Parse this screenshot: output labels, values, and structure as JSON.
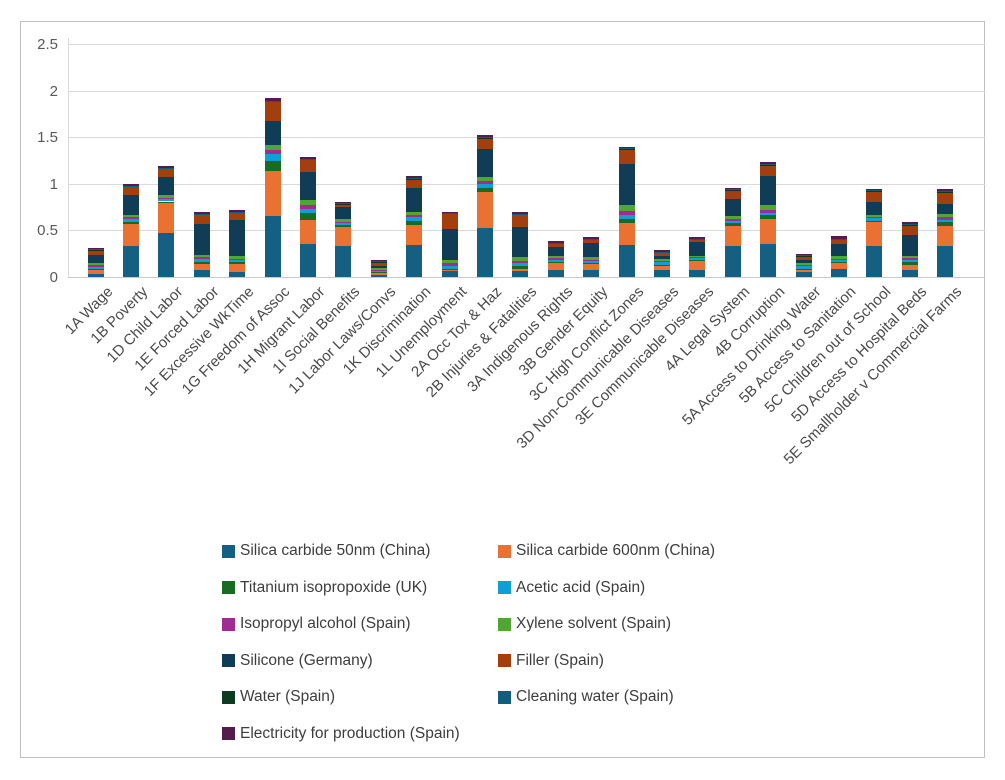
{
  "chart_data": {
    "type": "bar",
    "stacked": true,
    "title": "",
    "xlabel": "",
    "ylabel": "",
    "ylim": [
      0,
      2.5
    ],
    "y_ticks": [
      "0",
      "0.5",
      "1",
      "1.5",
      "2",
      "2.5"
    ],
    "y_tick_values": [
      0,
      0.5,
      1,
      1.5,
      2,
      2.5
    ],
    "grid": "horizontal",
    "legend_position": "bottom-two-columns",
    "categories": [
      "1A Wage",
      "1B Poverty",
      "1D Child Labor",
      "1E Forced Labor",
      "1F Excessive WkTime",
      "1G Freedom of Assoc",
      "1H Migrant Labor",
      "1I Social Benefits",
      "1J Labor Laws/Convs",
      "1K Discrimination",
      "1L Unemployment",
      "2A Occ Tox & Haz",
      "2B Injuries & Fatalities",
      "3A Indigenous Rights",
      "3B Gender Equity",
      "3C High Conflict Zones",
      "3D Non-Communicable Diseases",
      "3E Communicable Diseases",
      "4A Legal System",
      "4B Corruption",
      "5A Access to Drinking Water",
      "5B Access to Sanitation",
      "5C Children out of School",
      "5D Access to Hospital Beds",
      "5E Smallholder v Commercial Farms"
    ],
    "series": [
      {
        "name": "Silica carbide 50nm (China)",
        "color": "#156082",
        "values": [
          0.03,
          0.33,
          0.47,
          0.07,
          0.05,
          0.65,
          0.35,
          0.33,
          0.02,
          0.34,
          0.07,
          0.53,
          0.06,
          0.08,
          0.07,
          0.34,
          0.08,
          0.08,
          0.33,
          0.35,
          0.05,
          0.09,
          0.33,
          0.07,
          0.33
        ]
      },
      {
        "name": "Silica carbide 600nm (China)",
        "color": "#e97132",
        "values": [
          0.05,
          0.24,
          0.32,
          0.07,
          0.09,
          0.49,
          0.26,
          0.21,
          0.02,
          0.22,
          0.01,
          0.38,
          0.03,
          0.07,
          0.07,
          0.24,
          0.04,
          0.09,
          0.22,
          0.27,
          0.03,
          0.06,
          0.26,
          0.06,
          0.22
        ]
      },
      {
        "name": "Titanium isopropoxide (UK)",
        "color": "#196b24",
        "values": [
          0.01,
          0.02,
          0.02,
          0.02,
          0.02,
          0.1,
          0.08,
          0.02,
          0.01,
          0.04,
          0.01,
          0.05,
          0.03,
          0.01,
          0.01,
          0.04,
          0.01,
          0.01,
          0.03,
          0.04,
          0.01,
          0.01,
          0.01,
          0.03,
          0.035
        ]
      },
      {
        "name": "Acetic acid (Spain)",
        "color": "#0f9ed5",
        "values": [
          0.02,
          0.03,
          0.03,
          0.03,
          0.02,
          0.08,
          0.04,
          0.02,
          0.02,
          0.04,
          0.03,
          0.04,
          0.03,
          0.02,
          0.02,
          0.05,
          0.03,
          0.02,
          0.025,
          0.03,
          0.025,
          0.02,
          0.03,
          0.02,
          0.03
        ]
      },
      {
        "name": "Isopropyl alcohol (Spain)",
        "color": "#a02b93",
        "values": [
          0.02,
          0.02,
          0.01,
          0.02,
          0.01,
          0.04,
          0.04,
          0.01,
          0.01,
          0.02,
          0.03,
          0.03,
          0.02,
          0.02,
          0.01,
          0.04,
          0.01,
          0.01,
          0.02,
          0.03,
          0.015,
          0.01,
          0.01,
          0.025,
          0.03
        ]
      },
      {
        "name": "Xylene solvent (Spain)",
        "color": "#4ea72e",
        "values": [
          0.02,
          0.03,
          0.03,
          0.03,
          0.04,
          0.06,
          0.06,
          0.03,
          0.02,
          0.04,
          0.03,
          0.04,
          0.04,
          0.02,
          0.03,
          0.06,
          0.02,
          0.02,
          0.025,
          0.05,
          0.02,
          0.03,
          0.02,
          0.02,
          0.035
        ]
      },
      {
        "name": "Silicone (Germany)",
        "color": "#103c55",
        "values": [
          0.09,
          0.21,
          0.19,
          0.33,
          0.38,
          0.25,
          0.3,
          0.13,
          0.02,
          0.25,
          0.34,
          0.3,
          0.33,
          0.1,
          0.16,
          0.44,
          0.03,
          0.15,
          0.19,
          0.31,
          0.035,
          0.13,
          0.15,
          0.23,
          0.1
        ]
      },
      {
        "name": "Filler (Spain)",
        "color": "#a33e0f",
        "values": [
          0.05,
          0.09,
          0.09,
          0.1,
          0.08,
          0.21,
          0.13,
          0.03,
          0.04,
          0.1,
          0.16,
          0.12,
          0.13,
          0.04,
          0.03,
          0.16,
          0.04,
          0.02,
          0.09,
          0.12,
          0.04,
          0.05,
          0.11,
          0.1,
          0.13
        ]
      },
      {
        "name": "Water (Spain)",
        "color": "#0c3b22",
        "values": [
          0.005,
          0.005,
          0.005,
          0.005,
          0.005,
          0.005,
          0.005,
          0.005,
          0.005,
          0.005,
          0.005,
          0.005,
          0.005,
          0.005,
          0.005,
          0.005,
          0.005,
          0.005,
          0.005,
          0.005,
          0.005,
          0.005,
          0.005,
          0.005,
          0.005
        ]
      },
      {
        "name": "Cleaning water (Spain)",
        "color": "#0e5e7e",
        "values": [
          0.005,
          0.005,
          0.005,
          0.005,
          0.005,
          0.005,
          0.005,
          0.005,
          0.005,
          0.005,
          0.005,
          0.005,
          0.005,
          0.005,
          0.005,
          0.005,
          0.005,
          0.005,
          0.005,
          0.005,
          0.005,
          0.005,
          0.005,
          0.005,
          0.005
        ]
      },
      {
        "name": "Electricity for production (Spain)",
        "color": "#541b4d",
        "values": [
          0.01,
          0.02,
          0.02,
          0.02,
          0.02,
          0.03,
          0.02,
          0.02,
          0.015,
          0.02,
          0.01,
          0.02,
          0.02,
          0.02,
          0.02,
          0.02,
          0.015,
          0.015,
          0.02,
          0.025,
          0.015,
          0.025,
          0.01,
          0.02,
          0.02
        ]
      }
    ],
    "bar_totals_approx": [
      0.31,
      1.0,
      1.19,
      0.7,
      0.72,
      1.92,
      1.29,
      0.81,
      0.19,
      1.08,
      0.7,
      1.52,
      0.7,
      0.39,
      0.43,
      1.4,
      0.27,
      0.4,
      0.95,
      1.23,
      0.25,
      0.46,
      0.94,
      0.59,
      0.94
    ],
    "colors": {
      "gridline": "#d9d9d9",
      "axis_text": "#595959",
      "category_text": "#4a4a4a",
      "legend_text": "#3d3d3d",
      "frame_border": "#bfbfbf",
      "background": "#ffffff"
    }
  }
}
